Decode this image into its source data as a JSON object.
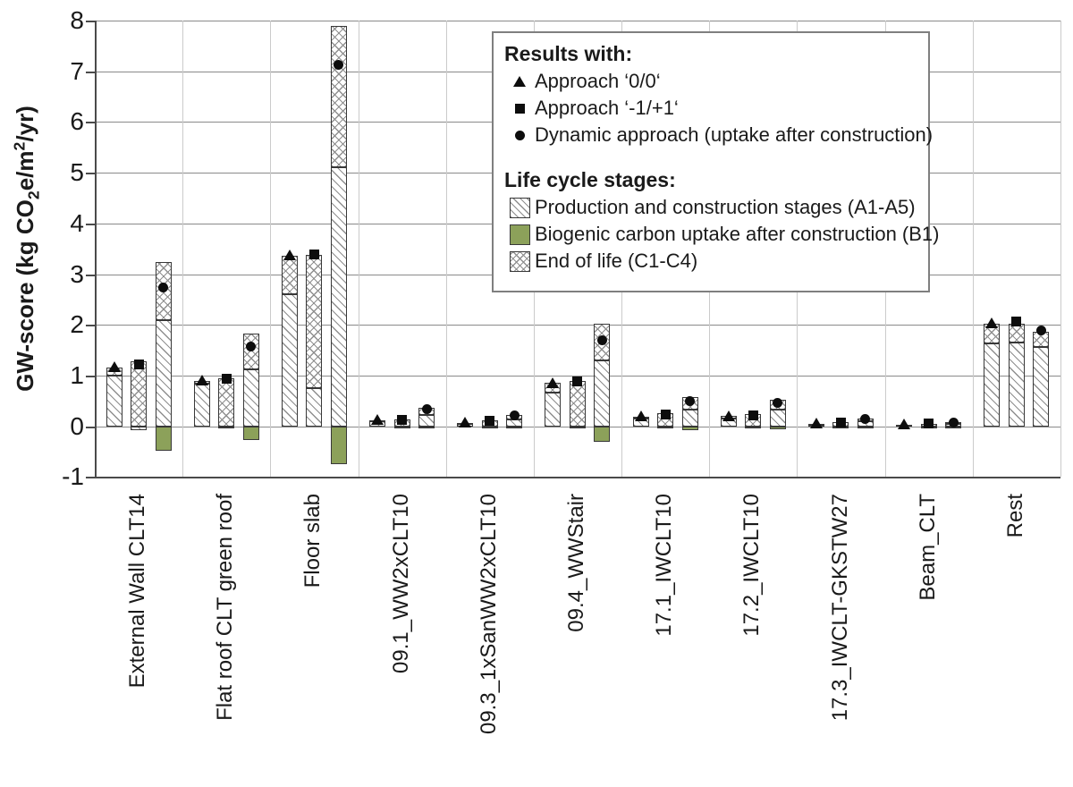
{
  "colors": {
    "biogenic_green": "#8CA15A",
    "hatch_line": "#8f8f8f",
    "bar_border": "#383838",
    "gridline": "#8a8a8a",
    "axis": "#4a4a4a",
    "separator": "#cbcbcb",
    "marker": "#0d0d0d"
  },
  "legend": {
    "results_header": "Results with:",
    "approaches": [
      {
        "icon": "triangle-marker",
        "label": "Approach ‘0/0‘"
      },
      {
        "icon": "square-marker",
        "label": "Approach ‘-1/+1‘"
      },
      {
        "icon": "circle-marker",
        "label": "Dynamic approach (uptake after construction)"
      }
    ],
    "stages_header": "Life cycle stages:",
    "stages": [
      {
        "icon": "production-hatch-swatch",
        "label": "Production and construction stages (A1-A5)"
      },
      {
        "icon": "biogenic-green-swatch",
        "label": "Biogenic carbon uptake after construction (B1)"
      },
      {
        "icon": "endoflife-crosshatch-swatch",
        "label": "End of life (C1-C4)"
      }
    ]
  },
  "chart_data": {
    "type": "bar",
    "stacked": true,
    "title": "",
    "ylabel_parts": {
      "pre": "GW-score (kg CO",
      "sub": "2",
      "mid": "e/m",
      "sup": "2",
      "post": "/yr)"
    },
    "ylim": [
      -1,
      8
    ],
    "yticks": [
      8,
      7,
      6,
      5,
      4,
      3,
      2,
      1,
      0,
      -1
    ],
    "grid": "horizontal",
    "legend_position": "top-right",
    "approaches": [
      "Approach ‘0/0‘",
      "Approach ‘-1/+1‘",
      "Dynamic approach (uptake after construction)"
    ],
    "marker_shapes": [
      "triangle",
      "square",
      "circle"
    ],
    "stages": [
      "Production and construction stages (A1-A5)",
      "Biogenic carbon uptake after construction (B1)",
      "End of life (C1-C4)"
    ],
    "categories": [
      "External Wall CLT14",
      "Flat roof CLT green roof",
      "Floor slab",
      "09.1_WW2xCLT10",
      "09.3_1xSanWW2xCLT10",
      "09.4_WWStair",
      "17.1_IWCLT10",
      "17.2_IWCLT10",
      "17.3_IWCLT-GKSTW27",
      "Beam_CLT",
      "Rest"
    ],
    "bars": [
      [
        {
          "a1a5": 1.0,
          "c1c4": 0.15,
          "b1": 0,
          "marker": 1.17
        },
        {
          "a1a5": -0.08,
          "c1c4": 1.28,
          "b1": 0,
          "marker": 1.21
        },
        {
          "a1a5": 2.1,
          "c1c4": 1.14,
          "b1": -0.49,
          "marker": 2.72
        }
      ],
      [
        {
          "a1a5": 0.84,
          "c1c4": 0.05,
          "b1": 0,
          "marker": 0.91
        },
        {
          "a1a5": -0.05,
          "c1c4": 0.94,
          "b1": 0,
          "marker": 0.92
        },
        {
          "a1a5": 1.12,
          "c1c4": 0.7,
          "b1": -0.28,
          "marker": 1.57
        }
      ],
      [
        {
          "a1a5": 2.6,
          "c1c4": 0.76,
          "b1": 0,
          "marker": 3.38
        },
        {
          "a1a5": 0.76,
          "c1c4": 2.62,
          "b1": 0,
          "marker": 3.38
        },
        {
          "a1a5": 5.1,
          "c1c4": 2.8,
          "b1": -0.75,
          "marker": 7.12
        }
      ],
      [
        {
          "a1a5": 0.1,
          "c1c4": 0.02,
          "b1": 0,
          "marker": 0.13
        },
        {
          "a1a5": -0.02,
          "c1c4": 0.14,
          "b1": 0,
          "marker": 0.12
        },
        {
          "a1a5": 0.22,
          "c1c4": 0.14,
          "b1": -0.04,
          "marker": 0.32
        }
      ],
      [
        {
          "a1a5": 0.05,
          "c1c4": 0.02,
          "b1": 0,
          "marker": 0.08
        },
        {
          "a1a5": -0.02,
          "c1c4": 0.12,
          "b1": 0,
          "marker": 0.1
        },
        {
          "a1a5": 0.13,
          "c1c4": 0.1,
          "b1": -0.03,
          "marker": 0.2
        }
      ],
      [
        {
          "a1a5": 0.67,
          "c1c4": 0.18,
          "b1": 0,
          "marker": 0.86
        },
        {
          "a1a5": -0.03,
          "c1c4": 0.89,
          "b1": 0,
          "marker": 0.88
        },
        {
          "a1a5": 1.29,
          "c1c4": 0.73,
          "b1": -0.31,
          "marker": 1.68
        }
      ],
      [
        {
          "a1a5": 0.15,
          "c1c4": 0.04,
          "b1": 0,
          "marker": 0.2
        },
        {
          "a1a5": -0.02,
          "c1c4": 0.25,
          "b1": 0,
          "marker": 0.22
        },
        {
          "a1a5": 0.32,
          "c1c4": 0.25,
          "b1": -0.08,
          "marker": 0.49
        }
      ],
      [
        {
          "a1a5": 0.16,
          "c1c4": 0.04,
          "b1": 0,
          "marker": 0.21
        },
        {
          "a1a5": -0.02,
          "c1c4": 0.24,
          "b1": 0,
          "marker": 0.21
        },
        {
          "a1a5": 0.32,
          "c1c4": 0.21,
          "b1": -0.06,
          "marker": 0.46
        }
      ],
      [
        {
          "a1a5": 0.04,
          "c1c4": 0.01,
          "b1": 0,
          "marker": 0.06
        },
        {
          "a1a5": -0.01,
          "c1c4": 0.08,
          "b1": 0,
          "marker": 0.07
        },
        {
          "a1a5": 0.09,
          "c1c4": 0.06,
          "b1": -0.02,
          "marker": 0.13
        }
      ],
      [
        {
          "a1a5": 0.02,
          "c1c4": 0.01,
          "b1": 0,
          "marker": 0.04
        },
        {
          "a1a5": -0.01,
          "c1c4": 0.05,
          "b1": 0,
          "marker": 0.05
        },
        {
          "a1a5": 0.04,
          "c1c4": 0.04,
          "b1": -0.01,
          "marker": 0.07
        }
      ],
      [
        {
          "a1a5": 1.63,
          "c1c4": 0.39,
          "b1": 0,
          "marker": 2.04
        },
        {
          "a1a5": 1.65,
          "c1c4": 0.37,
          "b1": 0,
          "marker": 2.05
        },
        {
          "a1a5": 1.56,
          "c1c4": 0.3,
          "b1": 0,
          "marker": 1.88
        }
      ]
    ]
  }
}
